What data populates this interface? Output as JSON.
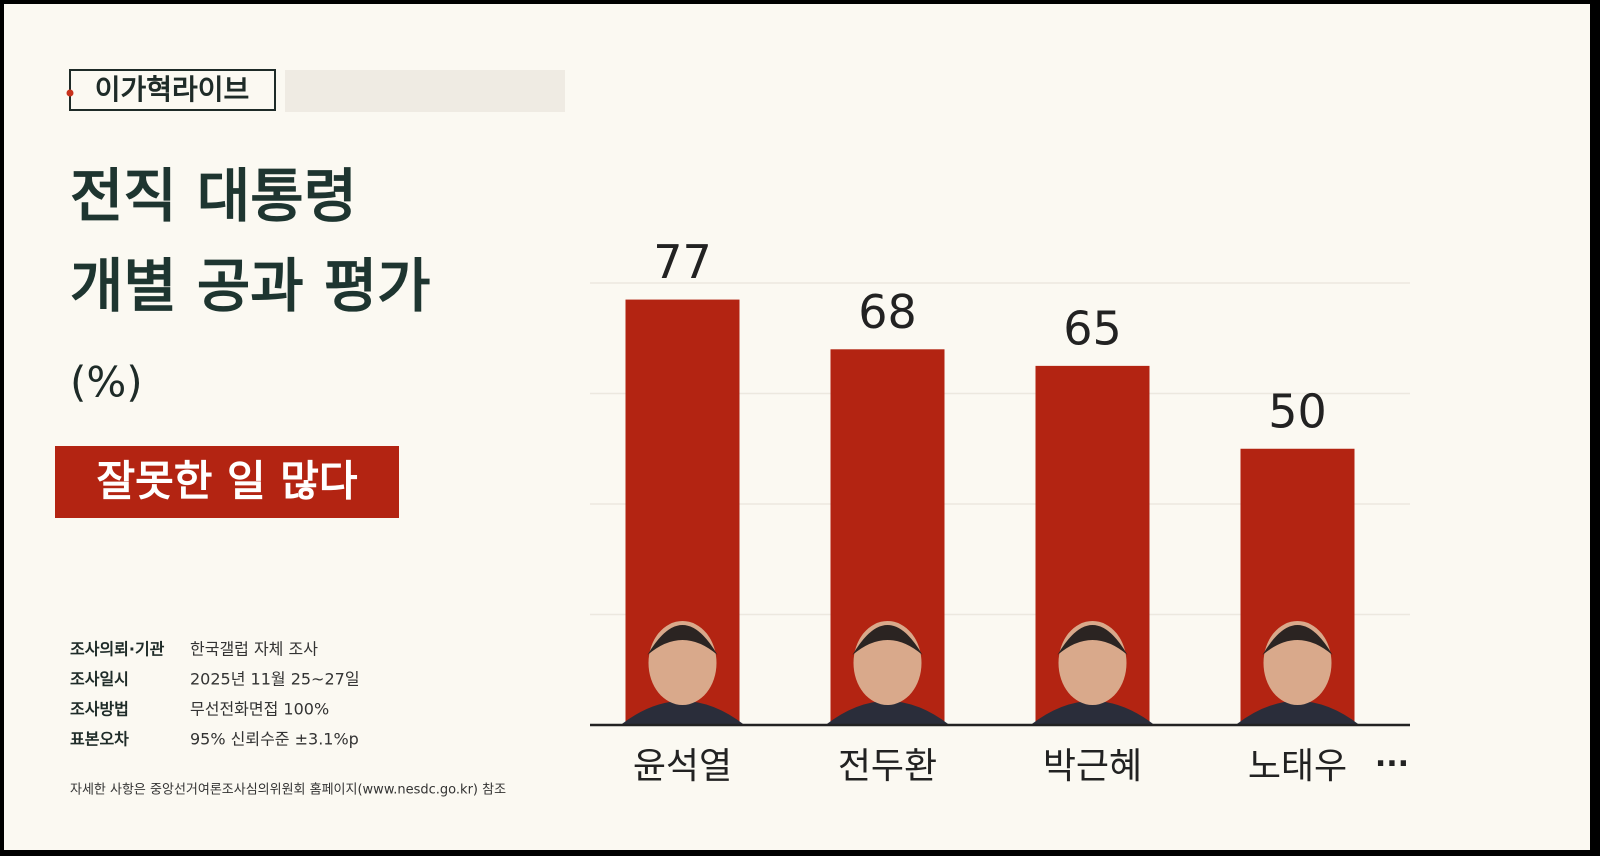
{
  "chart_data": {
    "type": "bar",
    "brand": "이가혁라이브",
    "title": [
      "전직 대통령",
      "개별 공과 평가"
    ],
    "unit": "(%)",
    "subtitle": "잘못한 일 많다",
    "categories": [
      "윤석열",
      "전두환",
      "박근혜",
      "노태우"
    ],
    "values": [
      77,
      68,
      65,
      50
    ],
    "more": "···",
    "color": "#b32412",
    "ylim": [
      0,
      80
    ],
    "yticks": [
      0,
      20,
      40,
      60,
      80
    ],
    "grid": true,
    "notes": [
      {
        "label": "조사의뢰·기관",
        "value": "한국갤럽 자체 조사"
      },
      {
        "label": "조사일시",
        "value": "2025년 11월 25~27일"
      },
      {
        "label": "조사방법",
        "value": "무선전화면접 100%"
      },
      {
        "label": "표본오차",
        "value": "95% 신뢰수준 ±3.1%p"
      }
    ],
    "footnote": "자세한 사항은 중앙선거여론조사심의위원회 홈페이지(www.nesdc.go.kr) 참조"
  }
}
